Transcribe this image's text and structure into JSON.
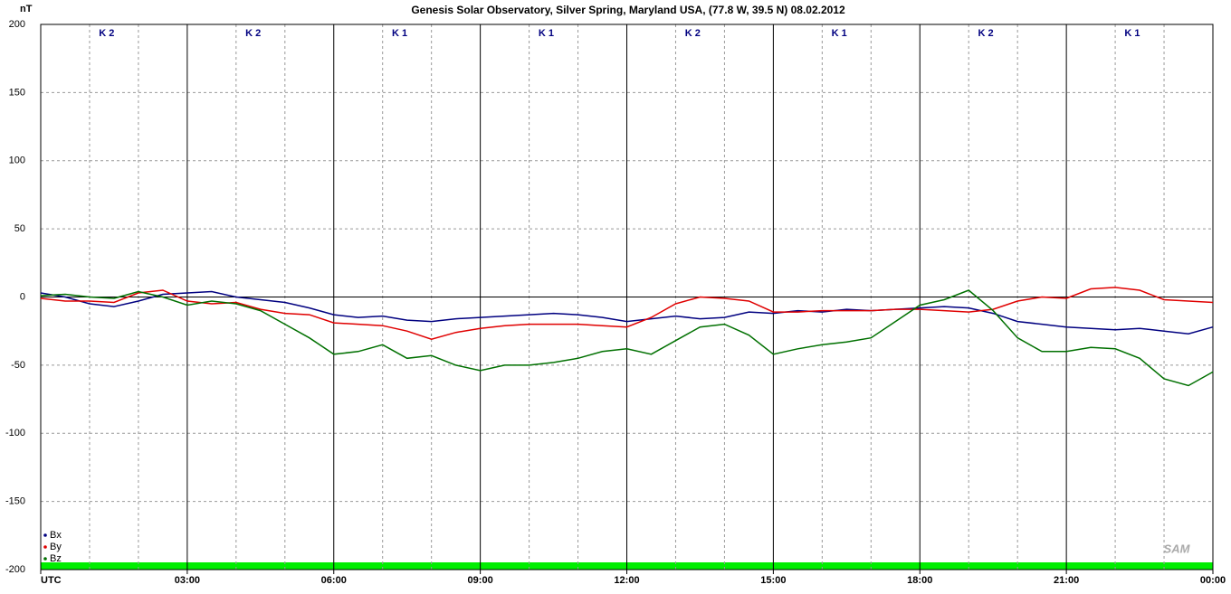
{
  "chart_data": {
    "type": "line",
    "title": "Genesis Solar Observatory, Silver Spring, Maryland USA, (77.8 W, 39.5 N)  08.02.2012",
    "y_label": "nT",
    "k_indices": [
      "K 2",
      "K 2",
      "K 1",
      "K 1",
      "K 2",
      "K 1",
      "K 2",
      "K 1"
    ],
    "logo": "SAM",
    "x": [
      0,
      0.5,
      1,
      1.5,
      2,
      2.5,
      3,
      3.5,
      4,
      4.5,
      5,
      5.5,
      6,
      6.5,
      7,
      7.5,
      8,
      8.5,
      9,
      9.5,
      10,
      10.5,
      11,
      11.5,
      12,
      12.5,
      13,
      13.5,
      14,
      14.5,
      15,
      15.5,
      16,
      16.5,
      17,
      17.5,
      18,
      18.5,
      19,
      19.5,
      20,
      20.5,
      21,
      21.5,
      22,
      22.5,
      23,
      23.5,
      24
    ],
    "xlim": [
      0,
      24
    ],
    "xticks": [
      {
        "value": 0,
        "label": "UTC"
      },
      {
        "value": 3,
        "label": "03:00"
      },
      {
        "value": 6,
        "label": "06:00"
      },
      {
        "value": 9,
        "label": "09:00"
      },
      {
        "value": 12,
        "label": "12:00"
      },
      {
        "value": 15,
        "label": "15:00"
      },
      {
        "value": 18,
        "label": "18:00"
      },
      {
        "value": 21,
        "label": "21:00"
      },
      {
        "value": 24,
        "label": "00:00"
      }
    ],
    "x_minor_ticks": [
      1,
      2,
      4,
      5,
      7,
      8,
      10,
      11,
      13,
      14,
      16,
      17,
      19,
      20,
      22,
      23
    ],
    "ylim": [
      -200,
      200
    ],
    "yticks": [
      200,
      150,
      100,
      50,
      0,
      -50,
      -100,
      -150,
      -200
    ],
    "grid": true,
    "legend": "lower left",
    "series": [
      {
        "name": "Bx",
        "color": "#000080",
        "values": [
          3,
          0,
          -5,
          -7,
          -3,
          2,
          3,
          4,
          0,
          -2,
          -4,
          -8,
          -13,
          -15,
          -14,
          -17,
          -18,
          -16,
          -15,
          -14,
          -13,
          -12,
          -13,
          -15,
          -18,
          -16,
          -14,
          -16,
          -15,
          -11,
          -12,
          -10,
          -11,
          -9,
          -10,
          -9,
          -8,
          -7,
          -8,
          -12,
          -18,
          -20,
          -22,
          -23,
          -24,
          -23,
          -25,
          -27,
          -22
        ]
      },
      {
        "name": "By",
        "color": "#e00000",
        "values": [
          -1,
          -3,
          -3,
          -4,
          3,
          5,
          -3,
          -5,
          -4,
          -9,
          -12,
          -13,
          -19,
          -20,
          -21,
          -25,
          -31,
          -26,
          -23,
          -21,
          -20,
          -20,
          -20,
          -21,
          -22,
          -15,
          -5,
          0,
          -1,
          -3,
          -11,
          -11,
          -10,
          -10,
          -10,
          -9,
          -9,
          -10,
          -11,
          -9,
          -3,
          0,
          -1,
          6,
          7,
          5,
          -2,
          -3,
          -4
        ]
      },
      {
        "name": "Bz",
        "color": "#007000",
        "values": [
          1,
          2,
          0,
          -1,
          4,
          0,
          -6,
          -3,
          -5,
          -10,
          -20,
          -30,
          -42,
          -40,
          -35,
          -45,
          -43,
          -50,
          -54,
          -50,
          -50,
          -48,
          -45,
          -40,
          -38,
          -42,
          -32,
          -22,
          -20,
          -28,
          -42,
          -38,
          -35,
          -33,
          -30,
          -18,
          -6,
          -2,
          5,
          -10,
          -30,
          -40,
          -40,
          -37,
          -38,
          -45,
          -60,
          -65,
          -55
        ]
      }
    ]
  }
}
